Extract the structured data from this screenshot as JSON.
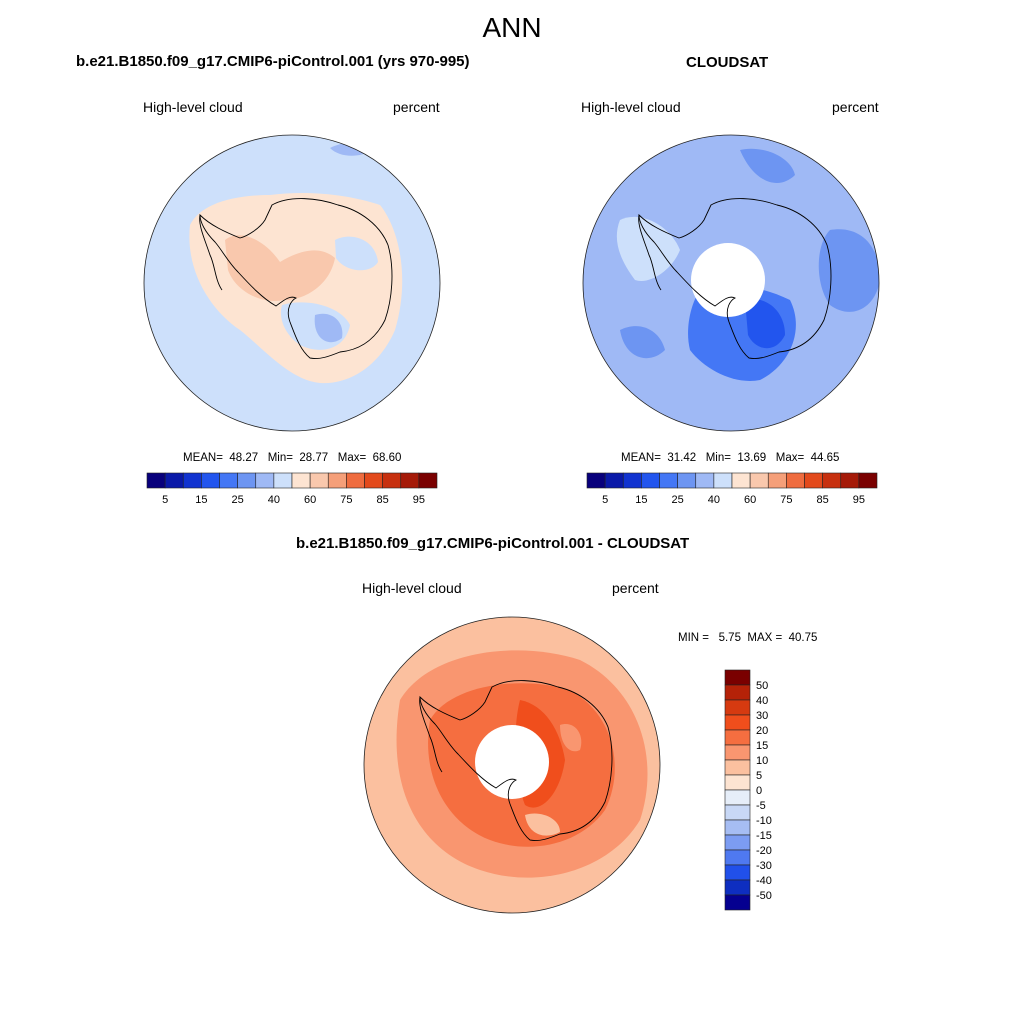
{
  "figure": {
    "title": "ANN"
  },
  "chart_data": [
    {
      "type": "heatmap",
      "projection": "south-polar-stereographic",
      "title": "b.e21.B1850.f09_g17.CMIP6-piControl.001 (yrs 970-995)",
      "variable_label": "High-level cloud",
      "units_label": "percent",
      "stats": {
        "mean_label": "MEAN=",
        "mean": "48.27",
        "min_label": "Min=",
        "min": "28.77",
        "max_label": "Max=",
        "max": "68.60"
      },
      "colorbar": {
        "orientation": "horizontal",
        "levels": [
          5,
          10,
          15,
          20,
          25,
          30,
          40,
          50,
          60,
          70,
          75,
          80,
          85,
          90,
          95
        ],
        "tick_labels": [
          "5",
          "15",
          "25",
          "40",
          "60",
          "75",
          "85",
          "95"
        ],
        "colors": [
          "#08007c",
          "#0a19a8",
          "#1133d0",
          "#2255ee",
          "#4477f5",
          "#6d95f2",
          "#9fb9f5",
          "#cde0fb",
          "#fde4d2",
          "#f9c8ad",
          "#f59f79",
          "#ef6c3f",
          "#e34a1c",
          "#c7300f",
          "#a51a08",
          "#7a0000"
        ]
      },
      "field_summary": "Values mostly 40-70; ocean ~40-50, West Antarctica / Ross-Weddell sector 60-70, small low pockets 25-40 over East Antarctica"
    },
    {
      "type": "heatmap",
      "projection": "south-polar-stereographic",
      "title": "CLOUDSAT",
      "variable_label": "High-level cloud",
      "units_label": "percent",
      "stats": {
        "mean_label": "MEAN=",
        "mean": "31.42",
        "min_label": "Min=",
        "min": "13.69",
        "max_label": "Max=",
        "max": "44.65"
      },
      "colorbar": {
        "orientation": "horizontal",
        "levels": [
          5,
          10,
          15,
          20,
          25,
          30,
          40,
          50,
          60,
          70,
          75,
          80,
          85,
          90,
          95
        ],
        "tick_labels": [
          "5",
          "15",
          "25",
          "40",
          "60",
          "75",
          "85",
          "95"
        ],
        "colors": [
          "#08007c",
          "#0a19a8",
          "#1133d0",
          "#2255ee",
          "#4477f5",
          "#6d95f2",
          "#9fb9f5",
          "#cde0fb",
          "#fde4d2",
          "#f9c8ad",
          "#f59f79",
          "#ef6c3f",
          "#e34a1c",
          "#c7300f",
          "#a51a08",
          "#7a0000"
        ]
      },
      "field_summary": "Values mostly 25-45; minimum 13-20 over East Antarctic plateau; polar data gap (white) near the pole"
    },
    {
      "type": "heatmap",
      "projection": "south-polar-stereographic",
      "title": "b.e21.B1850.f09_g17.CMIP6-piControl.001 - CLOUDSAT",
      "variable_label": "High-level cloud",
      "units_label": "percent",
      "stats": {
        "min_label": "MIN =",
        "min": "5.75",
        "max_label": "MAX =",
        "max": "40.75"
      },
      "colorbar": {
        "orientation": "vertical",
        "levels": [
          50,
          40,
          30,
          20,
          15,
          10,
          5,
          0,
          -5,
          -10,
          -15,
          -20,
          -30,
          -40,
          -50
        ],
        "tick_labels": [
          "50",
          "40",
          "30",
          "20",
          "15",
          "10",
          "5",
          "0",
          "-5",
          "-10",
          "-15",
          "-20",
          "-30",
          "-40",
          "-50"
        ],
        "colors": [
          "#7a0000",
          "#b52208",
          "#d63a10",
          "#f04e1c",
          "#f56e40",
          "#f99670",
          "#fbc09f",
          "#fde4d2",
          "#e6eef9",
          "#c8d8f6",
          "#a6bdf3",
          "#7c9cf2",
          "#4f79f0",
          "#2150ea",
          "#0e2ec0",
          "#050090"
        ]
      },
      "field_summary": "All positive differences: 10-20 over outer ocean, 20-30 over inner ring, 30-40 near coast / Ross sector; polar data gap (white)"
    }
  ]
}
